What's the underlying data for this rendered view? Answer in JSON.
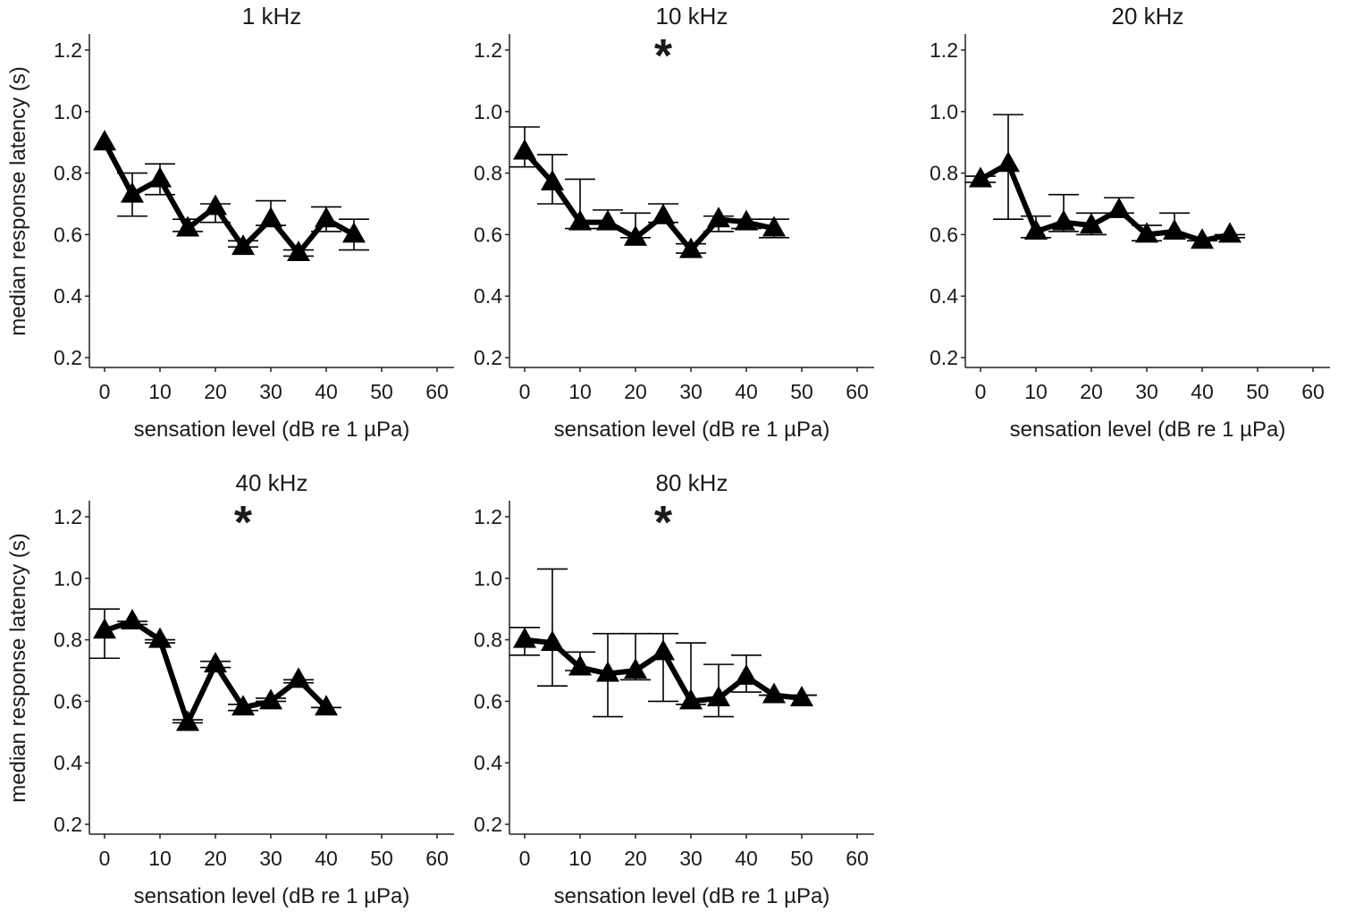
{
  "chart_data": {
    "type": "line",
    "ylabel": "median response latency (s)",
    "xlabel": "sensation level (dB re 1 µPa)",
    "xlim": [
      0,
      60
    ],
    "ylim": [
      0.2,
      1.2
    ],
    "xticks": [
      0,
      10,
      20,
      30,
      40,
      50,
      60
    ],
    "yticks": [
      "0.2",
      "0.4",
      "0.6",
      "0.8",
      "1.0",
      "1.2"
    ],
    "grid": false,
    "marker": "triangle",
    "color": "#000000",
    "panels": [
      {
        "title": "1 kHz",
        "significant": false,
        "x": [
          0,
          5,
          10,
          15,
          20,
          25,
          30,
          35,
          40,
          45
        ],
        "y": [
          0.9,
          0.73,
          0.78,
          0.62,
          0.69,
          0.56,
          0.65,
          0.54,
          0.65,
          0.6
        ],
        "err_low": [
          null,
          0.66,
          0.73,
          0.61,
          0.64,
          0.56,
          0.63,
          0.53,
          0.61,
          0.55
        ],
        "err_high": [
          null,
          0.8,
          0.83,
          0.65,
          0.7,
          0.58,
          0.71,
          0.55,
          0.69,
          0.65
        ]
      },
      {
        "title": "10 kHz",
        "significant": true,
        "annotation": "*",
        "x": [
          0,
          5,
          10,
          15,
          20,
          25,
          30,
          35,
          40,
          45
        ],
        "y": [
          0.87,
          0.77,
          0.64,
          0.64,
          0.59,
          0.66,
          0.55,
          0.65,
          0.64,
          0.62
        ],
        "err_low": [
          0.82,
          0.7,
          0.62,
          0.62,
          0.59,
          0.64,
          0.54,
          0.61,
          0.62,
          0.59
        ],
        "err_high": [
          0.95,
          0.86,
          0.78,
          0.68,
          0.67,
          0.7,
          0.57,
          0.66,
          0.65,
          0.65
        ]
      },
      {
        "title": "20 kHz",
        "significant": false,
        "x": [
          0,
          5,
          10,
          15,
          20,
          25,
          30,
          35,
          40,
          45
        ],
        "y": [
          0.78,
          0.83,
          0.61,
          0.64,
          0.63,
          0.68,
          0.6,
          0.61,
          0.58,
          0.6
        ],
        "err_low": [
          0.77,
          0.65,
          0.59,
          0.61,
          0.6,
          0.67,
          0.58,
          0.6,
          0.58,
          0.59
        ],
        "err_high": [
          0.79,
          0.99,
          0.66,
          0.73,
          0.67,
          0.72,
          0.63,
          0.67,
          0.59,
          0.6
        ]
      },
      {
        "title": "40 kHz",
        "significant": true,
        "annotation": "*",
        "x": [
          0,
          5,
          10,
          15,
          20,
          25,
          30,
          35,
          40
        ],
        "y": [
          0.83,
          0.86,
          0.8,
          0.53,
          0.72,
          0.58,
          0.6,
          0.67,
          0.58
        ],
        "err_low": [
          0.74,
          0.85,
          0.79,
          0.53,
          0.71,
          0.57,
          0.6,
          0.66,
          0.58
        ],
        "err_high": [
          0.9,
          0.86,
          0.8,
          0.54,
          0.73,
          0.59,
          0.61,
          0.67,
          0.58
        ]
      },
      {
        "title": "80 kHz",
        "significant": true,
        "annotation": "*",
        "x": [
          0,
          5,
          10,
          15,
          20,
          25,
          30,
          35,
          40,
          45,
          50
        ],
        "y": [
          0.8,
          0.79,
          0.71,
          0.69,
          0.7,
          0.76,
          0.6,
          0.61,
          0.68,
          0.62,
          0.61
        ],
        "err_low": [
          0.75,
          0.65,
          0.7,
          0.55,
          0.67,
          0.6,
          0.59,
          0.55,
          0.63,
          0.62,
          0.62
        ],
        "err_high": [
          0.84,
          1.03,
          0.76,
          0.82,
          0.82,
          0.82,
          0.79,
          0.72,
          0.75,
          0.62,
          0.62
        ]
      }
    ]
  }
}
